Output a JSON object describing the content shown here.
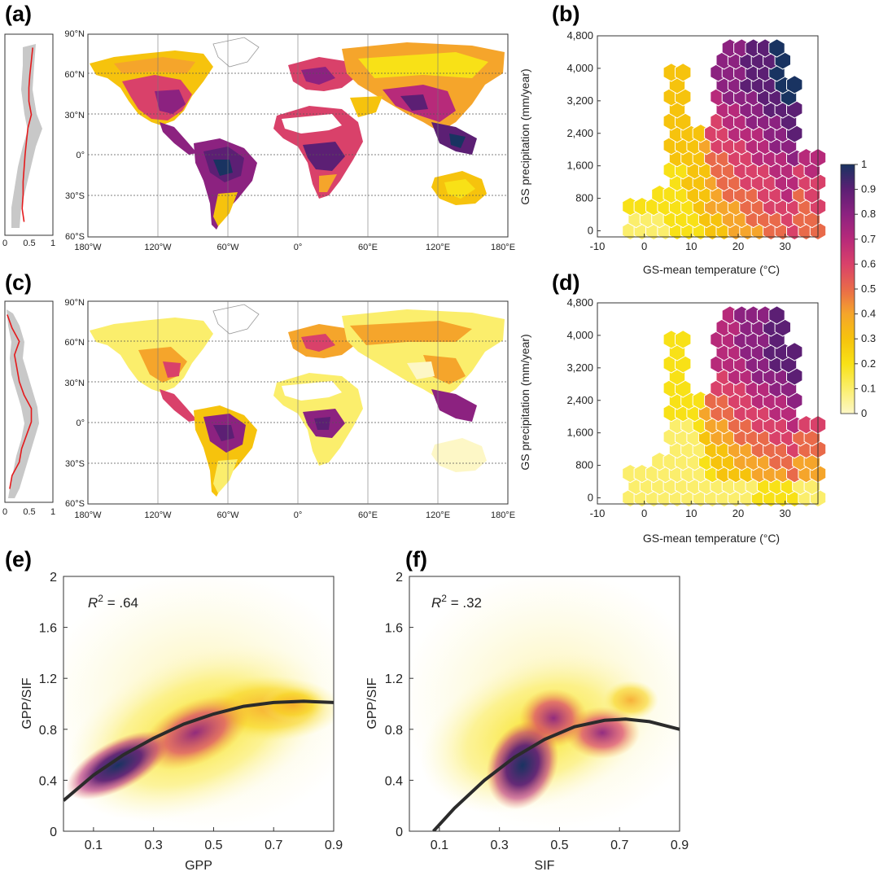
{
  "panel_labels": [
    "(a)",
    "(b)",
    "(c)",
    "(d)",
    "(e)",
    "(f)"
  ],
  "map_axes": {
    "lon_ticks": [
      "180°W",
      "120°W",
      "60°W",
      "0°",
      "60°E",
      "120°E",
      "180°E"
    ],
    "lat_ticks": [
      "90°N",
      "60°N",
      "30°N",
      "0°",
      "30°S",
      "60°S"
    ],
    "profile_ticks": [
      "0",
      "0.5",
      "1"
    ]
  },
  "colorbar": {
    "ticks": [
      "1",
      "0.9",
      "0.8",
      "0.7",
      "0.6",
      "0.5",
      "0.4",
      "0.3",
      "0.2",
      "0.1",
      "0"
    ],
    "colors": [
      "#fdf7c6",
      "#fbee6c",
      "#f8e117",
      "#f6c30d",
      "#f5a52b",
      "#e96a4a",
      "#d9416a",
      "#b72a7a",
      "#8c2280",
      "#5c1f74",
      "#193361"
    ]
  },
  "chart_data": [
    {
      "panel": "(a)",
      "type": "heatmap",
      "title": "",
      "xlabel": "",
      "ylabel": "",
      "xlim": [
        -180,
        180
      ],
      "ylim": [
        -60,
        90
      ],
      "profile": {
        "xlim": [
          0,
          1
        ],
        "lat": [
          80,
          70,
          60,
          50,
          40,
          30,
          20,
          10,
          0,
          -10,
          -20,
          -30,
          -40,
          -50
        ],
        "values": [
          0.58,
          0.55,
          0.52,
          0.5,
          0.5,
          0.55,
          0.48,
          0.45,
          0.42,
          0.4,
          0.38,
          0.38,
          0.36,
          0.4
        ]
      }
    },
    {
      "panel": "(b)",
      "type": "heatmap",
      "xlabel": "GS-mean temperature (°C)",
      "ylabel": "GS precipitation (mm/year)",
      "xlim": [
        -10,
        37
      ],
      "ylim": [
        -150,
        4800
      ],
      "xticks": [
        "-10",
        "0",
        "10",
        "20",
        "30"
      ],
      "yticks": [
        "0",
        "800",
        "1,600",
        "2,400",
        "3,200",
        "4,000",
        "4,800"
      ],
      "color_range": [
        0,
        1
      ]
    },
    {
      "panel": "(c)",
      "type": "heatmap",
      "xlim": [
        -180,
        180
      ],
      "ylim": [
        -60,
        90
      ],
      "profile": {
        "xlim": [
          0,
          1
        ],
        "lat": [
          80,
          70,
          60,
          50,
          40,
          30,
          20,
          10,
          0,
          -10,
          -20,
          -30,
          -40,
          -50
        ],
        "values": [
          0.05,
          0.15,
          0.3,
          0.2,
          0.25,
          0.3,
          0.4,
          0.55,
          0.55,
          0.45,
          0.35,
          0.3,
          0.15,
          0.1
        ]
      }
    },
    {
      "panel": "(d)",
      "type": "heatmap",
      "xlabel": "GS-mean temperature (°C)",
      "ylabel": "GS precipitation (mm/year)",
      "xlim": [
        -10,
        37
      ],
      "ylim": [
        -150,
        4800
      ],
      "xticks": [
        "-10",
        "0",
        "10",
        "20",
        "30"
      ],
      "yticks": [
        "0",
        "800",
        "1,600",
        "2,400",
        "3,200",
        "4,000",
        "4,800"
      ],
      "color_range": [
        0,
        1
      ]
    },
    {
      "panel": "(e)",
      "type": "scatter",
      "xlabel": "GPP",
      "ylabel": "GPP/SIF",
      "xlim": [
        0,
        0.9
      ],
      "ylim": [
        0,
        2
      ],
      "xticks": [
        "0.1",
        "0.3",
        "0.5",
        "0.7",
        "0.9"
      ],
      "yticks": [
        "0",
        "0.4",
        "0.8",
        "1.2",
        "1.6",
        "2"
      ],
      "r2_text": ".64",
      "fit_curve": {
        "x": [
          0,
          0.1,
          0.2,
          0.3,
          0.4,
          0.5,
          0.6,
          0.7,
          0.8,
          0.9
        ],
        "y": [
          0.24,
          0.44,
          0.6,
          0.73,
          0.84,
          0.92,
          0.98,
          1.01,
          1.02,
          1.01
        ]
      }
    },
    {
      "panel": "(f)",
      "type": "scatter",
      "xlabel": "SIF",
      "ylabel": "GPP/SIF",
      "xlim": [
        0,
        0.9
      ],
      "ylim": [
        0,
        2
      ],
      "xticks": [
        "0.1",
        "0.3",
        "0.5",
        "0.7",
        "0.9"
      ],
      "yticks": [
        "0",
        "0.4",
        "0.8",
        "1.2",
        "1.6",
        "2"
      ],
      "r2_text": ".32",
      "fit_curve": {
        "x": [
          0.08,
          0.15,
          0.25,
          0.35,
          0.45,
          0.55,
          0.65,
          0.72,
          0.8,
          0.9
        ],
        "y": [
          0.0,
          0.18,
          0.4,
          0.58,
          0.72,
          0.82,
          0.87,
          0.88,
          0.86,
          0.8
        ]
      }
    }
  ]
}
